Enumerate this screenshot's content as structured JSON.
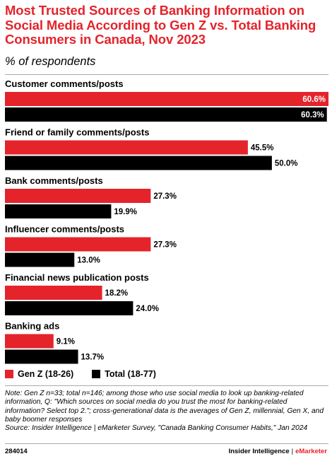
{
  "header": {
    "title": "Most Trusted Sources of Banking Information on Social Media According to Gen Z vs. Total Banking Consumers in Canada, Nov 2023",
    "subtitle": "% of respondents"
  },
  "chart_data": {
    "type": "bar",
    "orientation": "horizontal",
    "categories": [
      "Customer comments/posts",
      "Friend or family comments/posts",
      "Bank comments/posts",
      "Influencer comments/posts",
      "Financial news publication posts",
      "Banking ads"
    ],
    "series": [
      {
        "name": "Gen Z (18-26)",
        "color": "#e4232b",
        "values": [
          60.6,
          45.5,
          27.3,
          27.3,
          18.2,
          9.1
        ]
      },
      {
        "name": "Total (18-77)",
        "color": "#000000",
        "values": [
          60.3,
          50.0,
          19.9,
          13.0,
          24.0,
          13.7
        ]
      }
    ],
    "xlim": [
      0,
      60.6
    ],
    "value_suffix": "%",
    "legend_position": "bottom-left",
    "grid": false
  },
  "legend": {
    "items": [
      {
        "label": "Gen Z (18-26)",
        "color": "#e4232b"
      },
      {
        "label": "Total (18-77)",
        "color": "#000000"
      }
    ]
  },
  "notes": {
    "text": "Note: Gen Z n=33; total n=146; among those who use social media to look up banking-related information, Q: \"Which sources on social media do you trust the most for banking-related information? Select top 2.\"; cross-generational data is the averages of Gen Z, millennial, Gen X, and baby boomer responses",
    "source": "Source: Insider Intelligence | eMarketer Survey, \"Canada Banking Consumer Habits,\" Jan 2024"
  },
  "footer": {
    "id": "284014",
    "brand_left": "Insider Intelligence",
    "brand_sep": "|",
    "brand_right": "eMarketer"
  }
}
